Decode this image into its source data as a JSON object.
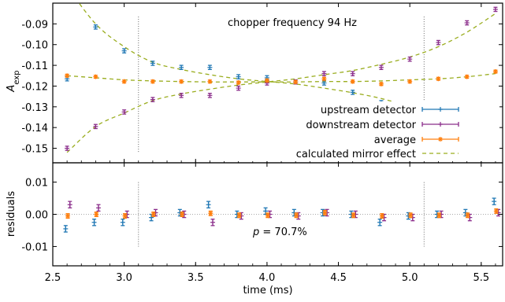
{
  "chart_data": {
    "type": "scatter",
    "annotation_top": "chopper frequency 94 Hz",
    "annotation_bottom_prefix": "p",
    "annotation_bottom_value": " = 70.7%",
    "xlabel": "time (ms)",
    "xlim": [
      2.5,
      5.65
    ],
    "x_ticks": [
      "2.5",
      "3.0",
      "3.5",
      "4.0",
      "4.5",
      "5.0",
      "5.5"
    ],
    "x_tick_values": [
      2.5,
      3.0,
      3.5,
      4.0,
      4.5,
      5.0,
      5.5
    ],
    "vlines": [
      3.1,
      5.1
    ],
    "top_panel": {
      "ylabel_main": "A",
      "ylabel_sub": "exp",
      "ylim": [
        -0.157,
        -0.08
      ],
      "y_ticks": [
        "-0.09",
        "-0.10",
        "-0.11",
        "-0.12",
        "-0.13",
        "-0.14",
        "-0.15"
      ],
      "y_tick_values": [
        -0.09,
        -0.1,
        -0.11,
        -0.12,
        -0.13,
        -0.14,
        -0.15
      ],
      "legend_position": "lower-right",
      "series": [
        {
          "name": "upstream detector",
          "color": "#1f77b4",
          "marker": "plus",
          "x": [
            2.6,
            2.8,
            3.0,
            3.2,
            3.4,
            3.6,
            3.8,
            4.0,
            4.2,
            4.4,
            4.6,
            4.8,
            5.0,
            5.2,
            5.4,
            5.6
          ],
          "y": [
            -0.1165,
            -0.0915,
            -0.103,
            -0.109,
            -0.111,
            -0.111,
            -0.1155,
            -0.116,
            -0.118,
            -0.1185,
            -0.123,
            -0.128,
            -0.129,
            -0.1345,
            -0.1405,
            -0.147
          ],
          "err": [
            0.001,
            0.001,
            0.001,
            0.001,
            0.001,
            0.001,
            0.001,
            0.001,
            0.001,
            0.001,
            0.001,
            0.001,
            0.001,
            0.001,
            0.001,
            0.001
          ]
        },
        {
          "name": "downstream detector",
          "color": "#8b2d8b",
          "marker": "plus",
          "x": [
            2.6,
            2.8,
            3.0,
            3.2,
            3.4,
            3.6,
            3.8,
            4.0,
            4.2,
            4.4,
            4.6,
            4.8,
            5.0,
            5.2,
            5.4,
            5.6
          ],
          "y": [
            -0.15,
            -0.1395,
            -0.1325,
            -0.1265,
            -0.1245,
            -0.1245,
            -0.121,
            -0.1185,
            -0.118,
            -0.114,
            -0.114,
            -0.111,
            -0.107,
            -0.099,
            -0.0895,
            -0.083
          ],
          "err": [
            0.001,
            0.001,
            0.001,
            0.001,
            0.001,
            0.001,
            0.001,
            0.001,
            0.001,
            0.001,
            0.001,
            0.001,
            0.001,
            0.001,
            0.001,
            0.001
          ]
        },
        {
          "name": "average",
          "color": "#ff7f0e",
          "marker": "star",
          "x": [
            2.6,
            2.8,
            3.0,
            3.2,
            3.4,
            3.6,
            3.8,
            4.0,
            4.2,
            4.4,
            4.6,
            4.8,
            5.0,
            5.2,
            5.4,
            5.6
          ],
          "y": [
            -0.115,
            -0.1155,
            -0.1178,
            -0.1178,
            -0.1178,
            -0.1178,
            -0.1183,
            -0.1173,
            -0.118,
            -0.1165,
            -0.1178,
            -0.119,
            -0.1178,
            -0.1165,
            -0.1155,
            -0.113
          ],
          "err": [
            0.0007,
            0.0007,
            0.0007,
            0.0007,
            0.0007,
            0.0007,
            0.0007,
            0.0007,
            0.0007,
            0.0007,
            0.0007,
            0.0007,
            0.0007,
            0.0007,
            0.0007,
            0.0007
          ]
        },
        {
          "name": "calculated mirror effect",
          "color": "#9aad1f",
          "style": "dashed",
          "curves": [
            {
              "x": [
                2.6,
                2.8,
                3.0,
                3.2,
                3.4,
                3.6,
                3.8,
                4.0,
                4.2,
                4.4,
                4.6,
                4.8,
                5.0,
                5.2,
                5.4,
                5.6
              ],
              "y": [
                -0.072,
                -0.09,
                -0.101,
                -0.1085,
                -0.112,
                -0.1145,
                -0.1165,
                -0.1178,
                -0.119,
                -0.121,
                -0.1232,
                -0.126,
                -0.13,
                -0.135,
                -0.142,
                -0.15
              ]
            },
            {
              "x": [
                2.6,
                2.8,
                3.0,
                3.2,
                3.4,
                3.6,
                3.8,
                4.0,
                4.2,
                4.4,
                4.6,
                4.8,
                5.0,
                5.2,
                5.4,
                5.6
              ],
              "y": [
                -0.152,
                -0.1395,
                -0.133,
                -0.127,
                -0.1238,
                -0.1215,
                -0.1195,
                -0.118,
                -0.1165,
                -0.1145,
                -0.1125,
                -0.1095,
                -0.106,
                -0.101,
                -0.094,
                -0.085
              ]
            },
            {
              "x": [
                2.6,
                2.8,
                3.0,
                3.2,
                3.4,
                3.6,
                3.8,
                4.0,
                4.2,
                4.4,
                4.6,
                4.8,
                5.0,
                5.2,
                5.4,
                5.6
              ],
              "y": [
                -0.115,
                -0.116,
                -0.117,
                -0.1175,
                -0.1178,
                -0.118,
                -0.118,
                -0.118,
                -0.118,
                -0.1178,
                -0.1178,
                -0.1175,
                -0.117,
                -0.1165,
                -0.1155,
                -0.114
              ]
            }
          ]
        }
      ]
    },
    "bottom_panel": {
      "ylabel": "residuals",
      "ylim": [
        -0.016,
        0.016
      ],
      "y_ticks": [
        "0.01",
        "0.00",
        "-0.01"
      ],
      "y_tick_values": [
        0.01,
        0.0,
        -0.01
      ],
      "series": [
        {
          "name": "upstream detector",
          "color": "#1f77b4",
          "x": [
            2.59,
            2.79,
            2.99,
            3.19,
            3.39,
            3.59,
            3.79,
            3.99,
            4.19,
            4.39,
            4.59,
            4.79,
            4.99,
            5.19,
            5.39,
            5.59
          ],
          "y": [
            -0.0045,
            -0.0025,
            -0.0025,
            -0.001,
            0.0005,
            0.003,
            0.0,
            0.001,
            0.0005,
            0.0005,
            0.0,
            -0.0025,
            -0.0005,
            0.0,
            0.0005,
            0.004
          ],
          "err": [
            0.001,
            0.001,
            0.001,
            0.001,
            0.001,
            0.001,
            0.001,
            0.001,
            0.001,
            0.001,
            0.001,
            0.001,
            0.001,
            0.001,
            0.001,
            0.001
          ]
        },
        {
          "name": "downstream detector",
          "color": "#8b2d8b",
          "x": [
            2.62,
            2.82,
            3.02,
            3.22,
            3.42,
            3.62,
            3.82,
            4.02,
            4.22,
            4.42,
            4.62,
            4.82,
            5.02,
            5.22,
            5.42,
            5.62
          ],
          "y": [
            0.003,
            0.002,
            0.0,
            0.0005,
            0.0,
            -0.0025,
            -0.0005,
            0.0,
            -0.0005,
            0.0005,
            0.0,
            -0.001,
            -0.001,
            0.0,
            -0.001,
            0.0005
          ],
          "err": [
            0.001,
            0.001,
            0.001,
            0.001,
            0.001,
            0.001,
            0.001,
            0.001,
            0.001,
            0.001,
            0.001,
            0.001,
            0.001,
            0.001,
            0.001,
            0.001
          ]
        },
        {
          "name": "average",
          "color": "#ff7f0e",
          "x": [
            2.605,
            2.805,
            3.005,
            3.205,
            3.405,
            3.605,
            3.805,
            4.005,
            4.205,
            4.405,
            4.605,
            4.805,
            5.005,
            5.205,
            5.405,
            5.605
          ],
          "y": [
            -0.0005,
            0.0,
            -0.0005,
            0.0,
            0.0,
            0.0003,
            -0.0003,
            -0.0003,
            -0.0003,
            0.0005,
            -0.0003,
            -0.0005,
            -0.0003,
            -0.0003,
            -0.0003,
            0.001
          ],
          "err": [
            0.0007,
            0.0007,
            0.0007,
            0.0007,
            0.0007,
            0.0007,
            0.0007,
            0.0007,
            0.0007,
            0.0007,
            0.0007,
            0.0007,
            0.0007,
            0.0007,
            0.0007,
            0.0007
          ]
        }
      ]
    }
  }
}
